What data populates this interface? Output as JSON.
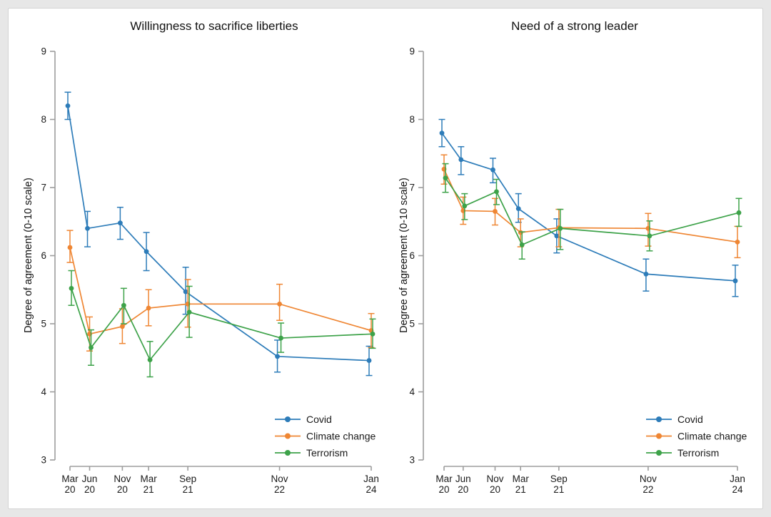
{
  "page": {
    "background_color": "#e7e7e7",
    "card_background": "#ffffff",
    "card_border": "#d4d4d4",
    "axis_color": "#9d9d9d",
    "text_color": "#1a1a1a"
  },
  "chart_data": [
    {
      "type": "line",
      "title": "Willingness to sacrifice liberties",
      "xlabel": "",
      "ylabel": "Degree of agreement (0-10 scale)",
      "ylim": [
        3,
        9
      ],
      "yticks": [
        3,
        4,
        5,
        6,
        7,
        8,
        9
      ],
      "grid": "off",
      "error_bars": "95% confidence intervals",
      "legend_position": "lower right",
      "categories": [
        "Mar 20",
        "Jun 20",
        "Nov 20",
        "Mar 21",
        "Sep 21",
        "Nov 22",
        "Jan 24"
      ],
      "category_line1": [
        "Mar",
        "Jun",
        "Nov",
        "Mar",
        "Sep",
        "Nov",
        "Jan"
      ],
      "category_line2": [
        "20",
        "20",
        "20",
        "21",
        "21",
        "22",
        "24"
      ],
      "x_months": [
        0,
        3,
        8,
        12,
        18,
        32,
        46
      ],
      "series": [
        {
          "name": "Covid",
          "color": "#2d7cb9",
          "values": [
            8.2,
            6.4,
            6.48,
            6.06,
            5.47,
            4.52,
            4.46
          ],
          "ci_low": [
            8.0,
            6.13,
            6.24,
            5.78,
            5.14,
            4.29,
            4.24
          ],
          "ci_high": [
            8.4,
            6.65,
            6.71,
            6.34,
            5.83,
            4.76,
            4.67
          ]
        },
        {
          "name": "Climate change",
          "color": "#ef8633",
          "values": [
            6.12,
            4.85,
            4.96,
            5.23,
            5.29,
            5.29,
            4.9
          ],
          "ci_low": [
            5.9,
            4.6,
            4.71,
            4.97,
            4.95,
            5.05,
            4.65
          ],
          "ci_high": [
            6.37,
            5.1,
            5.22,
            5.5,
            5.65,
            5.58,
            5.15
          ]
        },
        {
          "name": "Terrorism",
          "color": "#3da249",
          "values": [
            5.52,
            4.65,
            5.27,
            4.47,
            5.17,
            4.79,
            4.85
          ],
          "ci_low": [
            5.27,
            4.39,
            5.0,
            4.22,
            4.8,
            4.58,
            4.64
          ],
          "ci_high": [
            5.78,
            4.91,
            5.52,
            4.74,
            5.55,
            5.01,
            5.07
          ]
        }
      ]
    },
    {
      "type": "line",
      "title": "Need of a strong leader",
      "xlabel": "",
      "ylabel": "Degree of agreement (0-10 scale)",
      "ylim": [
        3,
        9
      ],
      "yticks": [
        3,
        4,
        5,
        6,
        7,
        8,
        9
      ],
      "grid": "off",
      "error_bars": "95% confidence intervals",
      "legend_position": "lower right",
      "categories": [
        "Mar 20",
        "Jun 20",
        "Nov 20",
        "Mar 21",
        "Sep 21",
        "Nov 22",
        "Jan 24"
      ],
      "category_line1": [
        "Mar",
        "Jun",
        "Nov",
        "Mar",
        "Sep",
        "Nov",
        "Jan"
      ],
      "category_line2": [
        "20",
        "20",
        "20",
        "21",
        "21",
        "22",
        "24"
      ],
      "x_months": [
        0,
        3,
        8,
        12,
        18,
        32,
        46
      ],
      "series": [
        {
          "name": "Covid",
          "color": "#2d7cb9",
          "values": [
            7.8,
            7.41,
            7.26,
            6.69,
            6.29,
            5.73,
            5.63
          ],
          "ci_low": [
            7.6,
            7.19,
            7.07,
            6.49,
            6.04,
            5.48,
            5.4
          ],
          "ci_high": [
            8.0,
            7.6,
            7.43,
            6.91,
            6.54,
            5.95,
            5.86
          ]
        },
        {
          "name": "Climate change",
          "color": "#ef8633",
          "values": [
            7.27,
            6.66,
            6.65,
            6.34,
            6.41,
            6.4,
            6.2
          ],
          "ci_low": [
            7.05,
            6.46,
            6.45,
            6.13,
            6.13,
            6.14,
            5.97
          ],
          "ci_high": [
            7.48,
            6.86,
            6.84,
            6.54,
            6.68,
            6.62,
            6.43
          ]
        },
        {
          "name": "Terrorism",
          "color": "#3da249",
          "values": [
            7.14,
            6.73,
            6.94,
            6.16,
            6.4,
            6.29,
            6.63
          ],
          "ci_low": [
            6.93,
            6.53,
            6.75,
            5.95,
            6.09,
            6.07,
            6.43
          ],
          "ci_high": [
            7.35,
            6.91,
            7.12,
            6.35,
            6.68,
            6.51,
            6.84
          ]
        }
      ]
    }
  ]
}
